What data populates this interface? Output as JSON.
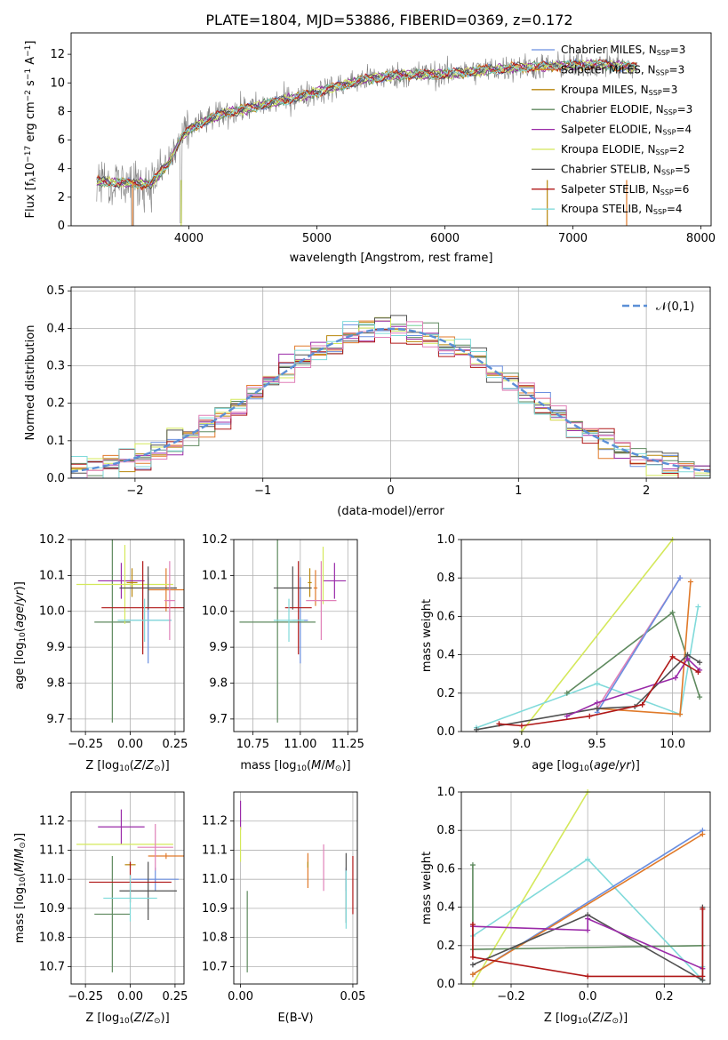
{
  "title": "PLATE=1804, MJD=53886, FIBERID=0369, z=0.172",
  "colors": {
    "chabrier_miles": "#6a8fe0",
    "salpeter_miles": "#e07a2a",
    "kroupa_miles": "#b8860b",
    "chabrier_elodie": "#5f8a5f",
    "salpeter_elodie": "#9a2aa8",
    "kroupa_elodie": "#d4e85a",
    "chabrier_stelib": "#505050",
    "salpeter_stelib": "#b01818",
    "kroupa_stelib": "#80dada",
    "pink": "#e080b8",
    "data": "#7f7f7f"
  },
  "chart_data": [
    {
      "id": "spectrum",
      "type": "line",
      "xlabel": "wavelength [Angstrom, rest frame]",
      "ylabel": "Flux [f_λ10^-17 erg cm^-2 s^-1 A^-1]",
      "xlim": [
        3080,
        8080
      ],
      "ylim": [
        0,
        13.5
      ],
      "xticks": [
        4000,
        5000,
        6000,
        7000,
        8000
      ],
      "yticks": [
        0,
        2,
        4,
        6,
        8,
        10,
        12
      ],
      "grid": false,
      "legend": "top-right",
      "legend_entries": [
        {
          "key": "chabrier_miles",
          "label": "Chabrier MILES, N",
          "sub": "SSP",
          "suffix": "=3"
        },
        {
          "key": "salpeter_miles",
          "label": "Salpeter MILES, N",
          "sub": "SSP",
          "suffix": "=3"
        },
        {
          "key": "kroupa_miles",
          "label": "Kroupa MILES, N",
          "sub": "SSP",
          "suffix": "=3"
        },
        {
          "key": "chabrier_elodie",
          "label": "Chabrier ELODIE, N",
          "sub": "SSP",
          "suffix": "=3"
        },
        {
          "key": "salpeter_elodie",
          "label": "Salpeter ELODIE, N",
          "sub": "SSP",
          "suffix": "=4"
        },
        {
          "key": "kroupa_elodie",
          "label": "Kroupa ELODIE, N",
          "sub": "SSP",
          "suffix": "=2"
        },
        {
          "key": "chabrier_stelib",
          "label": "Chabrier STELIB, N",
          "sub": "SSP",
          "suffix": "=5"
        },
        {
          "key": "salpeter_stelib",
          "label": "Salpeter STELIB, N",
          "sub": "SSP",
          "suffix": "=6"
        },
        {
          "key": "kroupa_stelib",
          "label": "Kroupa STELIB, N",
          "sub": "SSP",
          "suffix": "=4"
        }
      ],
      "continuum": {
        "x": [
          3280,
          3500,
          3700,
          3850,
          3950,
          4050,
          4250,
          4500,
          4800,
          5100,
          5400,
          5700,
          6000,
          6300,
          6600,
          6900,
          7200,
          7500
        ],
        "y": [
          3.1,
          3.0,
          2.9,
          4.5,
          6.3,
          7.0,
          7.8,
          8.3,
          8.9,
          9.6,
          10.3,
          10.6,
          10.6,
          10.9,
          11.1,
          11.2,
          11.3,
          11.1
        ]
      }
    },
    {
      "id": "residuals",
      "type": "histogram",
      "xlabel": "(data-model)/error",
      "ylabel": "Normed distribution",
      "xlim": [
        -2.5,
        2.5
      ],
      "ylim": [
        0,
        0.51
      ],
      "xticks": [
        -2,
        -1,
        0,
        1,
        2
      ],
      "yticks": [
        0.0,
        0.1,
        0.2,
        0.3,
        0.4,
        0.5
      ],
      "grid": true,
      "legend": "top-right",
      "normal_curve_label": "𝒩(0,1)",
      "bin_width": 0.125
    },
    {
      "id": "age_vs_Z",
      "type": "scatter",
      "xlabel": "Z [log10(Z/Z☉)]",
      "ylabel": "age  [log10(age/yr)]",
      "xlim": [
        -0.33,
        0.3
      ],
      "ylim": [
        9.665,
        10.2
      ],
      "xticks": [
        -0.25,
        0.0,
        0.25
      ],
      "yticks": [
        9.7,
        9.8,
        9.9,
        10.0,
        10.1,
        10.2
      ],
      "grid": true,
      "points": [
        {
          "key": "chabrier_miles",
          "x": 0.1,
          "xerr": 0.13,
          "y": 9.975,
          "yerr": 0.12
        },
        {
          "key": "salpeter_miles",
          "x": 0.2,
          "xerr": 0.1,
          "y": 10.06,
          "yerr": 0.06
        },
        {
          "key": "kroupa_miles",
          "x": 0.01,
          "xerr": 0.03,
          "y": 10.08,
          "yerr": 0.04
        },
        {
          "key": "chabrier_elodie",
          "x": -0.1,
          "xerr": 0.1,
          "y": 9.97,
          "yerr": 0.28
        },
        {
          "key": "salpeter_elodie",
          "x": -0.05,
          "xerr": 0.13,
          "y": 10.085,
          "yerr": 0.05
        },
        {
          "key": "kroupa_elodie",
          "x": -0.03,
          "xerr": 0.27,
          "y": 10.075,
          "yerr": 0.11
        },
        {
          "key": "chabrier_stelib",
          "x": 0.1,
          "xerr": 0.16,
          "y": 10.065,
          "yerr": 0.06
        },
        {
          "key": "salpeter_stelib",
          "x": 0.07,
          "xerr": 0.23,
          "y": 10.01,
          "yerr": 0.13
        },
        {
          "key": "kroupa_stelib",
          "x": 0.08,
          "xerr": 0.15,
          "y": 9.975,
          "yerr": 0.06
        },
        {
          "key": "pink",
          "x": 0.22,
          "xerr": 0.03,
          "y": 10.03,
          "yerr": 0.11
        }
      ]
    },
    {
      "id": "age_vs_mass",
      "type": "scatter",
      "xlabel": "mass [log10(M/M☉)]",
      "ylabel": "",
      "xlim": [
        10.65,
        11.3
      ],
      "ylim": [
        9.665,
        10.2
      ],
      "xticks": [
        10.75,
        11.0,
        11.25
      ],
      "yticks": [
        9.7,
        9.8,
        9.9,
        10.0,
        10.1,
        10.2
      ],
      "grid": true,
      "points": [
        {
          "key": "chabrier_miles",
          "x": 11.0,
          "xerr": 0.04,
          "y": 9.975,
          "yerr": 0.12
        },
        {
          "key": "salpeter_miles",
          "x": 11.08,
          "xerr": 0.01,
          "y": 10.065,
          "yerr": 0.05
        },
        {
          "key": "kroupa_miles",
          "x": 11.05,
          "xerr": 0.01,
          "y": 10.08,
          "yerr": 0.04
        },
        {
          "key": "chabrier_elodie",
          "x": 10.88,
          "xerr": 0.2,
          "y": 9.97,
          "yerr": 0.28
        },
        {
          "key": "salpeter_elodie",
          "x": 11.18,
          "xerr": 0.06,
          "y": 10.085,
          "yerr": 0.05
        },
        {
          "key": "kroupa_elodie",
          "x": 11.12,
          "xerr": 0.0,
          "y": 10.1,
          "yerr": 0.08
        },
        {
          "key": "chabrier_stelib",
          "x": 10.96,
          "xerr": 0.1,
          "y": 10.065,
          "yerr": 0.06
        },
        {
          "key": "salpeter_stelib",
          "x": 10.99,
          "xerr": 0.07,
          "y": 10.01,
          "yerr": 0.13
        },
        {
          "key": "kroupa_stelib",
          "x": 10.94,
          "xerr": 0.08,
          "y": 9.975,
          "yerr": 0.06
        },
        {
          "key": "pink",
          "x": 11.11,
          "xerr": 0.08,
          "y": 10.03,
          "yerr": 0.11
        }
      ]
    },
    {
      "id": "weight_vs_age",
      "type": "line",
      "xlabel": "age  [log10(age/yr)]",
      "ylabel": "mass weight",
      "xlim": [
        8.6,
        10.25
      ],
      "ylim": [
        0,
        1.0
      ],
      "xticks": [
        9.0,
        9.5,
        10.0
      ],
      "yticks": [
        0.0,
        0.2,
        0.4,
        0.6,
        0.8,
        1.0
      ],
      "grid": true,
      "series": [
        {
          "key": "kroupa_elodie",
          "x": [
            9.0,
            10.0
          ],
          "y": [
            0.0,
            1.0
          ]
        },
        {
          "key": "kroupa_stelib",
          "x": [
            8.7,
            9.5,
            10.05,
            10.17
          ],
          "y": [
            0.02,
            0.25,
            0.09,
            0.65
          ]
        },
        {
          "key": "chabrier_elodie",
          "x": [
            9.3,
            10.0,
            10.18
          ],
          "y": [
            0.2,
            0.62,
            0.18
          ]
        },
        {
          "key": "salpeter_miles",
          "x": [
            9.5,
            10.05,
            10.12
          ],
          "y": [
            0.12,
            0.09,
            0.78
          ]
        },
        {
          "key": "pink",
          "x": [
            9.5,
            10.05
          ],
          "y": [
            0.12,
            0.8
          ]
        },
        {
          "key": "chabrier_miles",
          "x": [
            9.5,
            10.05
          ],
          "y": [
            0.1,
            0.8
          ]
        },
        {
          "key": "chabrier_stelib",
          "x": [
            8.7,
            9.5,
            9.75,
            10.1,
            10.18
          ],
          "y": [
            0.01,
            0.12,
            0.13,
            0.4,
            0.36
          ]
        },
        {
          "key": "salpeter_elodie",
          "x": [
            9.3,
            9.5,
            10.02,
            10.1,
            10.18
          ],
          "y": [
            0.08,
            0.15,
            0.28,
            0.38,
            0.32
          ]
        },
        {
          "key": "salpeter_stelib",
          "x": [
            8.85,
            9.0,
            9.45,
            9.8,
            10.0,
            10.17
          ],
          "y": [
            0.04,
            0.03,
            0.08,
            0.14,
            0.39,
            0.31
          ]
        }
      ]
    },
    {
      "id": "mass_vs_Z",
      "type": "scatter",
      "xlabel": "Z [log10(Z/Z☉)]",
      "ylabel": "mass [log10(M/M☉)]",
      "xlim": [
        -0.33,
        0.3
      ],
      "ylim": [
        10.64,
        11.3
      ],
      "xticks": [
        -0.25,
        0.0,
        0.25
      ],
      "yticks": [
        10.7,
        10.8,
        10.9,
        11.0,
        11.1,
        11.2
      ],
      "grid": true,
      "points": [
        {
          "key": "chabrier_miles",
          "x": 0.14,
          "xerr": 0.13,
          "y": 11.0,
          "yerr": 0.04
        },
        {
          "key": "salpeter_miles",
          "x": 0.2,
          "xerr": 0.1,
          "y": 11.08,
          "yerr": 0.01
        },
        {
          "key": "kroupa_miles",
          "x": 0.0,
          "xerr": 0.03,
          "y": 11.05,
          "yerr": 0.01
        },
        {
          "key": "chabrier_elodie",
          "x": -0.1,
          "xerr": 0.1,
          "y": 10.88,
          "yerr": 0.2
        },
        {
          "key": "salpeter_elodie",
          "x": -0.05,
          "xerr": 0.13,
          "y": 11.18,
          "yerr": 0.06
        },
        {
          "key": "kroupa_elodie",
          "x": -0.03,
          "xerr": 0.27,
          "y": 11.12,
          "yerr": 0.0
        },
        {
          "key": "chabrier_stelib",
          "x": 0.1,
          "xerr": 0.16,
          "y": 10.96,
          "yerr": 0.1
        },
        {
          "key": "salpeter_stelib",
          "x": 0.0,
          "xerr": 0.23,
          "y": 10.99,
          "yerr": 0.07
        },
        {
          "key": "kroupa_stelib",
          "x": 0.0,
          "xerr": 0.15,
          "y": 10.935,
          "yerr": 0.08
        },
        {
          "key": "pink",
          "x": 0.14,
          "xerr": 0.1,
          "y": 11.11,
          "yerr": 0.08
        }
      ]
    },
    {
      "id": "mass_vs_ebv",
      "type": "scatter",
      "xlabel": "E(B-V)",
      "ylabel": "",
      "xlim": [
        -0.003,
        0.052
      ],
      "ylim": [
        10.64,
        11.3
      ],
      "xticks": [
        0.0,
        0.05
      ],
      "yticks": [
        10.7,
        10.8,
        10.9,
        11.0,
        11.1,
        11.2
      ],
      "grid": true,
      "points": [
        {
          "key": "chabrier_miles",
          "x": 0.047,
          "xerr": 0.0,
          "y": 11.0,
          "yerr": 0.04
        },
        {
          "key": "salpeter_miles",
          "x": 0.03,
          "xerr": 0.0,
          "y": 11.03,
          "yerr": 0.06
        },
        {
          "key": "kroupa_miles",
          "x": 0.03,
          "xerr": 0.0,
          "y": 11.05,
          "yerr": 0.01
        },
        {
          "key": "chabrier_elodie",
          "x": 0.003,
          "xerr": 0.0,
          "y": 10.82,
          "yerr": 0.14
        },
        {
          "key": "salpeter_elodie",
          "x": 0.0,
          "xerr": 0.0,
          "y": 11.22,
          "yerr": 0.05
        },
        {
          "key": "kroupa_elodie",
          "x": 0.0,
          "xerr": 0.0,
          "y": 11.12,
          "yerr": 0.06
        },
        {
          "key": "chabrier_stelib",
          "x": 0.047,
          "xerr": 0.0,
          "y": 10.97,
          "yerr": 0.12
        },
        {
          "key": "salpeter_stelib",
          "x": 0.05,
          "xerr": 0.0,
          "y": 10.98,
          "yerr": 0.1
        },
        {
          "key": "kroupa_stelib",
          "x": 0.047,
          "xerr": 0.0,
          "y": 10.93,
          "yerr": 0.1
        },
        {
          "key": "pink",
          "x": 0.037,
          "xerr": 0.0,
          "y": 11.04,
          "yerr": 0.08
        }
      ]
    },
    {
      "id": "weight_vs_Z",
      "type": "line",
      "xlabel": "Z [log10(Z/Z☉)]",
      "ylabel": "mass weight",
      "xlim": [
        -0.33,
        0.32
      ],
      "ylim": [
        0,
        1.0
      ],
      "xticks": [
        -0.2,
        0.0,
        0.2
      ],
      "yticks": [
        0.0,
        0.2,
        0.4,
        0.6,
        0.8,
        1.0
      ],
      "grid": true,
      "series": [
        {
          "key": "kroupa_elodie",
          "x": [
            -0.3,
            0.0
          ],
          "y": [
            0.0,
            1.0
          ]
        },
        {
          "key": "kroupa_stelib",
          "x": [
            -0.3,
            0.0,
            0.3,
            0.3
          ],
          "y": [
            0.25,
            0.65,
            0.02,
            0.09
          ]
        },
        {
          "key": "chabrier_miles",
          "x": [
            -0.3,
            0.3
          ],
          "y": [
            0.05,
            0.8
          ]
        },
        {
          "key": "salpeter_miles",
          "x": [
            -0.3,
            0.3
          ],
          "y": [
            0.05,
            0.78
          ]
        },
        {
          "key": "chabrier_elodie",
          "x": [
            -0.3,
            -0.3,
            0.3
          ],
          "y": [
            0.62,
            0.18,
            0.2
          ]
        },
        {
          "key": "chabrier_stelib",
          "x": [
            -0.3,
            0.0,
            0.3,
            0.3
          ],
          "y": [
            0.1,
            0.36,
            0.02,
            0.4
          ]
        },
        {
          "key": "salpeter_elodie",
          "x": [
            -0.3,
            0.0,
            0.0,
            0.3
          ],
          "y": [
            0.3,
            0.28,
            0.34,
            0.08
          ]
        },
        {
          "key": "salpeter_stelib",
          "x": [
            -0.3,
            -0.3,
            0.0,
            0.3,
            0.3
          ],
          "y": [
            0.31,
            0.14,
            0.04,
            0.04,
            0.39
          ]
        }
      ]
    }
  ]
}
